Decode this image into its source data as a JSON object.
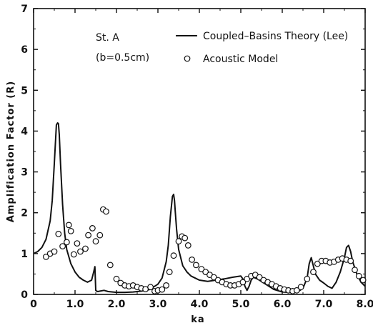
{
  "chart_data": {
    "type": "line",
    "title": "",
    "xlabel": "ka",
    "ylabel": "Amplification Factor (R)",
    "xlim": [
      0,
      8
    ],
    "ylim": [
      0,
      7
    ],
    "xticks": [
      0,
      1.0,
      2.0,
      3.0,
      4.0,
      5.0,
      6.0,
      7.0,
      8.0
    ],
    "xtick_labels": [
      "0",
      "1.0",
      "2.0",
      "3.0",
      "4.0",
      "5.0",
      "6.0",
      "7.0",
      "8.0"
    ],
    "yticks": [
      0,
      1,
      2,
      3,
      4,
      5,
      6,
      7
    ],
    "ytick_labels": [
      "0",
      "1",
      "2",
      "3",
      "4",
      "5",
      "6",
      "7"
    ],
    "grid": false,
    "annotations": [
      "St. A",
      "(b=0.5cm)"
    ],
    "legend": {
      "placement": "top-right",
      "entries": [
        "Coupled–Basins Theory (Lee)",
        "Acoustic Model"
      ]
    },
    "series": [
      {
        "name": "Coupled–Basins Theory (Lee)",
        "style": "line",
        "color": "#111111",
        "x": [
          0,
          0.1,
          0.2,
          0.3,
          0.4,
          0.45,
          0.5,
          0.55,
          0.58,
          0.6,
          0.62,
          0.65,
          0.7,
          0.75,
          0.8,
          0.9,
          1.0,
          1.1,
          1.2,
          1.3,
          1.4,
          1.45,
          1.48,
          1.5,
          1.52,
          1.55,
          1.6,
          1.7,
          1.8,
          2.0,
          2.2,
          2.4,
          2.6,
          2.8,
          3.0,
          3.1,
          3.2,
          3.25,
          3.3,
          3.35,
          3.38,
          3.4,
          3.42,
          3.45,
          3.5,
          3.6,
          3.7,
          3.8,
          4.0,
          4.2,
          4.4,
          4.6,
          4.8,
          5.0,
          5.05,
          5.1,
          5.15,
          5.2,
          5.25,
          5.3,
          5.4,
          5.6,
          5.8,
          6.0,
          6.2,
          6.4,
          6.5,
          6.6,
          6.65,
          6.7,
          6.75,
          6.8,
          6.9,
          7.0,
          7.1,
          7.2,
          7.3,
          7.4,
          7.5,
          7.55,
          7.6,
          7.65,
          7.7,
          7.8,
          7.9,
          8.0
        ],
        "y": [
          1.0,
          1.05,
          1.15,
          1.35,
          1.8,
          2.3,
          3.2,
          4.15,
          4.2,
          4.18,
          3.9,
          3.2,
          2.2,
          1.5,
          1.1,
          0.75,
          0.55,
          0.42,
          0.35,
          0.3,
          0.35,
          0.55,
          0.68,
          0.1,
          0.08,
          0.07,
          0.08,
          0.1,
          0.07,
          0.05,
          0.05,
          0.06,
          0.08,
          0.12,
          0.25,
          0.4,
          0.8,
          1.2,
          1.9,
          2.4,
          2.45,
          2.3,
          2.0,
          1.6,
          1.1,
          0.7,
          0.55,
          0.45,
          0.35,
          0.32,
          0.35,
          0.38,
          0.42,
          0.45,
          0.38,
          0.2,
          0.1,
          0.2,
          0.35,
          0.42,
          0.38,
          0.25,
          0.12,
          0.06,
          0.05,
          0.08,
          0.15,
          0.4,
          0.75,
          0.9,
          0.7,
          0.5,
          0.35,
          0.28,
          0.2,
          0.15,
          0.3,
          0.55,
          0.9,
          1.15,
          1.2,
          1.05,
          0.8,
          0.5,
          0.3,
          0.2
        ]
      },
      {
        "name": "Acoustic Model",
        "style": "scatter",
        "color": "#111111",
        "x": [
          0.3,
          0.4,
          0.5,
          0.6,
          0.7,
          0.8,
          0.85,
          0.9,
          0.97,
          1.05,
          1.13,
          1.25,
          1.32,
          1.42,
          1.5,
          1.6,
          1.68,
          1.75,
          1.85,
          2.0,
          2.1,
          2.2,
          2.3,
          2.4,
          2.5,
          2.6,
          2.7,
          2.82,
          2.92,
          3.0,
          3.1,
          3.2,
          3.28,
          3.38,
          3.5,
          3.58,
          3.65,
          3.73,
          3.82,
          3.92,
          4.05,
          4.15,
          4.25,
          4.35,
          4.45,
          4.55,
          4.65,
          4.75,
          4.85,
          4.95,
          5.05,
          5.15,
          5.25,
          5.35,
          5.45,
          5.55,
          5.65,
          5.75,
          5.85,
          5.95,
          6.05,
          6.15,
          6.25,
          6.35,
          6.45,
          6.6,
          6.75,
          6.85,
          6.95,
          7.05,
          7.15,
          7.25,
          7.35,
          7.45,
          7.55,
          7.65,
          7.75,
          7.85,
          7.95
        ],
        "y": [
          0.92,
          1.0,
          1.05,
          1.48,
          1.18,
          1.28,
          1.7,
          1.55,
          0.98,
          1.25,
          1.05,
          1.12,
          1.45,
          1.62,
          1.3,
          1.45,
          2.08,
          2.03,
          0.72,
          0.38,
          0.28,
          0.22,
          0.2,
          0.22,
          0.18,
          0.15,
          0.13,
          0.18,
          0.08,
          0.1,
          0.12,
          0.22,
          0.55,
          0.95,
          1.3,
          1.42,
          1.38,
          1.2,
          0.85,
          0.72,
          0.62,
          0.55,
          0.48,
          0.42,
          0.35,
          0.3,
          0.25,
          0.22,
          0.22,
          0.25,
          0.3,
          0.38,
          0.45,
          0.48,
          0.42,
          0.35,
          0.3,
          0.25,
          0.2,
          0.15,
          0.12,
          0.1,
          0.08,
          0.1,
          0.18,
          0.38,
          0.55,
          0.75,
          0.82,
          0.82,
          0.78,
          0.8,
          0.85,
          0.88,
          0.85,
          0.82,
          0.6,
          0.45,
          0.35
        ]
      }
    ]
  }
}
